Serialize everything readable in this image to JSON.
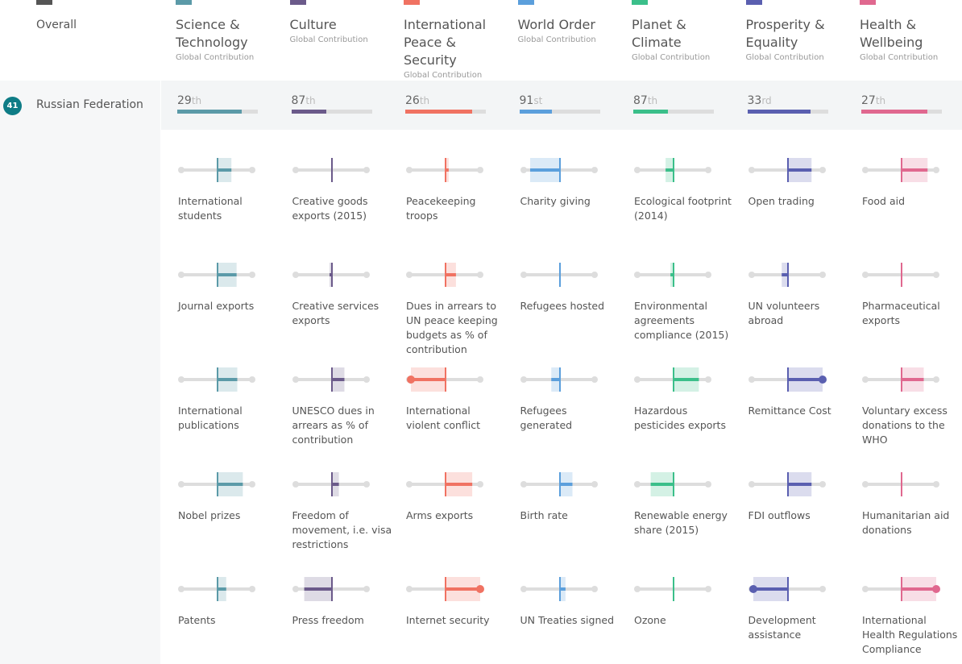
{
  "header": {
    "overall": "Overall"
  },
  "country": {
    "rank": 41,
    "name": "Russian Federation"
  },
  "columns": [
    {
      "title": "Science & Technology",
      "subtitle": "Global Contribution",
      "color": "#5b9aa8",
      "rank": 29,
      "suffix": "th",
      "fill": 80,
      "indicators": [
        {
          "label": "International students",
          "value": 0.4
        },
        {
          "label": "Journal exports",
          "value": 0.55
        },
        {
          "label": "International publications",
          "value": 0.57
        },
        {
          "label": "Nobel prizes",
          "value": 0.73
        },
        {
          "label": "Patents",
          "value": 0.25
        }
      ]
    },
    {
      "title": "Culture",
      "subtitle": "Global Contribution",
      "color": "#6b5a8a",
      "rank": 87,
      "suffix": "th",
      "fill": 43,
      "indicators": [
        {
          "label": "Creative goods exports (2015)",
          "value": 0
        },
        {
          "label": "Creative services exports",
          "value": -0.07
        },
        {
          "label": "UNESCO dues in arrears as % of contribution",
          "value": 0.36
        },
        {
          "label": "Freedom of movement, i.e. visa restrictions",
          "value": 0.2
        },
        {
          "label": "Press freedom",
          "value": -0.8
        }
      ]
    },
    {
      "title": "International Peace & Security",
      "subtitle": "Global Contribution",
      "color": "#f07262",
      "rank": 26,
      "suffix": "th",
      "fill": 83,
      "indicators": [
        {
          "label": "Peacekeeping troops",
          "value": 0.09
        },
        {
          "label": "Dues in arrears to UN peace keeping budgets as % of contribution",
          "value": 0.3
        },
        {
          "label": "International violent conflict",
          "value": -1
        },
        {
          "label": "Arms exports",
          "value": 0.77
        },
        {
          "label": "Internet security",
          "value": 1
        }
      ]
    },
    {
      "title": "World Order",
      "subtitle": "Global Contribution",
      "color": "#5b9fdc",
      "rank": 91,
      "suffix": "st",
      "fill": 40,
      "indicators": [
        {
          "label": "Charity giving",
          "value": -0.86
        },
        {
          "label": "Refugees hosted",
          "value": 0
        },
        {
          "label": "Refugees generated",
          "value": -0.25
        },
        {
          "label": "Birth rate",
          "value": 0.36
        },
        {
          "label": "UN Treaties signed",
          "value": 0.16
        }
      ]
    },
    {
      "title": "Planet & Climate",
      "subtitle": "Global Contribution",
      "color": "#3bbf8a",
      "rank": 87,
      "suffix": "th",
      "fill": 43,
      "indicators": [
        {
          "label": "Ecological footprint (2014)",
          "value": -0.23
        },
        {
          "label": "Environmental agreements compliance (2015)",
          "value": -0.09
        },
        {
          "label": "Hazardous pesticides exports",
          "value": 0.73
        },
        {
          "label": "Renewable energy share (2015)",
          "value": -0.66
        },
        {
          "label": "Ozone",
          "value": 0
        }
      ]
    },
    {
      "title": "Prosperity & Equality",
      "subtitle": "Global Contribution",
      "color": "#5a5fb0",
      "rank": 33,
      "suffix": "rd",
      "fill": 78,
      "indicators": [
        {
          "label": "Open trading",
          "value": 0.68
        },
        {
          "label": "UN volunteers abroad",
          "value": -0.18
        },
        {
          "label": "Remittance Cost",
          "value": 1
        },
        {
          "label": "FDI outflows",
          "value": 0.68
        },
        {
          "label": "Development assistance",
          "value": -1
        }
      ]
    },
    {
      "title": "Health & Wellbeing",
      "subtitle": "Global Contribution",
      "color": "#e0688f",
      "rank": 27,
      "suffix": "th",
      "fill": 82,
      "indicators": [
        {
          "label": "Food aid",
          "value": 0.75
        },
        {
          "label": "Pharmaceutical exports",
          "value": 0
        },
        {
          "label": "Voluntary excess donations to the WHO",
          "value": 0.64
        },
        {
          "label": "Humanitarian aid donations",
          "value": 0
        },
        {
          "label": "International Health Regulations Compliance",
          "value": 1
        }
      ]
    }
  ]
}
